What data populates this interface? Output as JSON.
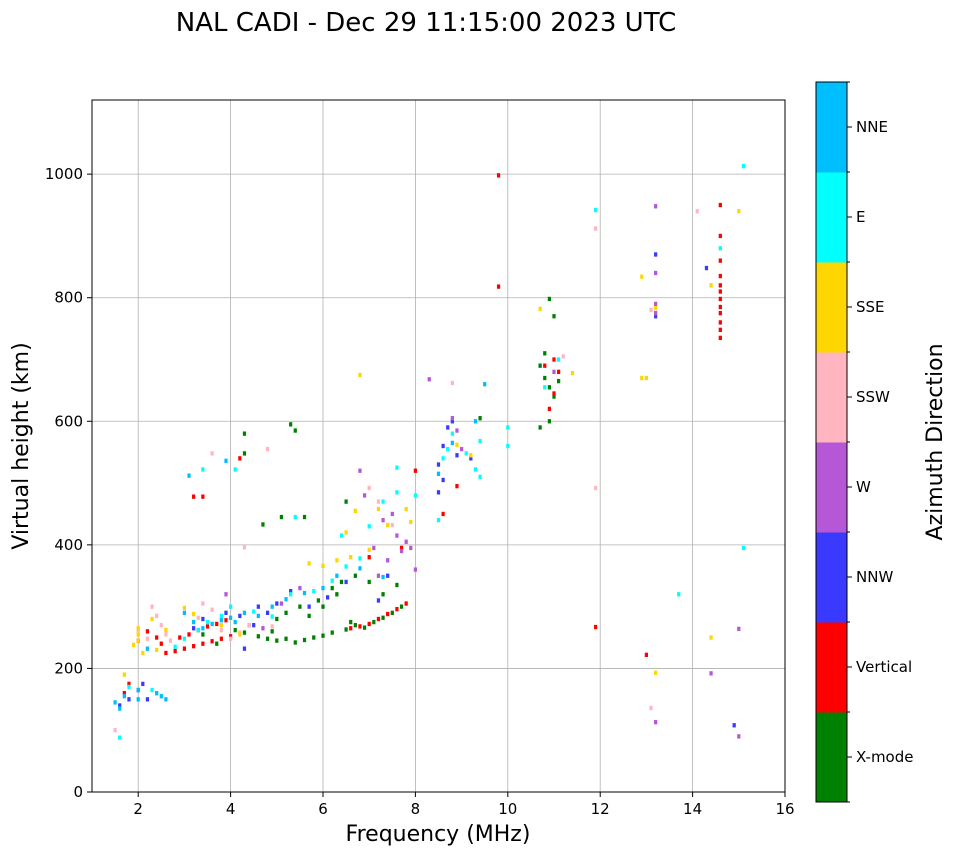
{
  "chart_data": {
    "type": "scatter",
    "title": "NAL CADI - Dec 29 11:15:00 2023 UTC",
    "xlabel": "Frequency (MHz)",
    "ylabel": "Virtual height (km)",
    "xlim": [
      1,
      16
    ],
    "ylim": [
      0,
      1120
    ],
    "xticks": [
      2,
      4,
      6,
      8,
      10,
      12,
      14,
      16
    ],
    "yticks": [
      0,
      200,
      400,
      600,
      800,
      1000
    ],
    "grid": true,
    "colorbar": {
      "label": "Azimuth Direction",
      "categories": [
        "X-mode",
        "Vertical",
        "NNW",
        "W",
        "SSW",
        "SSE",
        "E",
        "NNE"
      ],
      "colors": [
        "#008000",
        "#ff0000",
        "#3a3aff",
        "#b557d6",
        "#ffb6c1",
        "#ffd700",
        "#00ffff",
        "#00bfff"
      ]
    },
    "point_width_mhz": 0.07,
    "point_height_km": 7,
    "series": [
      {
        "name": "X-mode",
        "points": [
          [
            3.4,
            255
          ],
          [
            3.7,
            240
          ],
          [
            4.1,
            262
          ],
          [
            4.3,
            258
          ],
          [
            4.6,
            252
          ],
          [
            4.8,
            248
          ],
          [
            5.0,
            245
          ],
          [
            5.2,
            248
          ],
          [
            5.4,
            242
          ],
          [
            5.6,
            246
          ],
          [
            5.8,
            250
          ],
          [
            6.0,
            253
          ],
          [
            6.2,
            258
          ],
          [
            6.5,
            263
          ],
          [
            6.7,
            270
          ],
          [
            6.9,
            266
          ],
          [
            7.1,
            275
          ],
          [
            7.3,
            282
          ],
          [
            7.5,
            290
          ],
          [
            7.7,
            300
          ],
          [
            5.2,
            290
          ],
          [
            5.5,
            300
          ],
          [
            5.9,
            310
          ],
          [
            6.2,
            330
          ],
          [
            6.4,
            340
          ],
          [
            6.7,
            350
          ],
          [
            7.0,
            340
          ],
          [
            7.3,
            320
          ],
          [
            7.6,
            335
          ],
          [
            5.0,
            280
          ],
          [
            5.7,
            285
          ],
          [
            6.0,
            300
          ],
          [
            6.3,
            320
          ],
          [
            6.6,
            275
          ],
          [
            4.4,
            270
          ],
          [
            4.9,
            260
          ],
          [
            10.7,
            690
          ],
          [
            10.8,
            670
          ],
          [
            10.9,
            655
          ],
          [
            11.0,
            640
          ],
          [
            11.1,
            665
          ],
          [
            10.9,
            600
          ],
          [
            10.7,
            590
          ],
          [
            10.8,
            710
          ],
          [
            11.0,
            770
          ],
          [
            10.9,
            798
          ],
          [
            9.4,
            605
          ],
          [
            4.3,
            580
          ],
          [
            4.3,
            548
          ],
          [
            5.4,
            585
          ],
          [
            5.3,
            595
          ],
          [
            5.6,
            445
          ],
          [
            5.1,
            445
          ],
          [
            6.5,
            470
          ],
          [
            4.7,
            433
          ]
        ]
      },
      {
        "name": "Vertical",
        "points": [
          [
            2.6,
            225
          ],
          [
            2.8,
            228
          ],
          [
            3.0,
            232
          ],
          [
            3.2,
            236
          ],
          [
            3.4,
            240
          ],
          [
            3.6,
            244
          ],
          [
            3.8,
            248
          ],
          [
            4.0,
            252
          ],
          [
            2.9,
            250
          ],
          [
            3.1,
            255
          ],
          [
            3.3,
            262
          ],
          [
            3.5,
            268
          ],
          [
            3.7,
            272
          ],
          [
            3.9,
            278
          ],
          [
            2.5,
            240
          ],
          [
            2.4,
            250
          ],
          [
            2.2,
            260
          ],
          [
            2.0,
            245
          ],
          [
            1.7,
            160
          ],
          [
            1.8,
            175
          ],
          [
            6.6,
            265
          ],
          [
            6.8,
            268
          ],
          [
            7.0,
            272
          ],
          [
            7.2,
            280
          ],
          [
            7.4,
            288
          ],
          [
            7.6,
            296
          ],
          [
            7.8,
            305
          ],
          [
            7.0,
            380
          ],
          [
            7.7,
            395
          ],
          [
            8.0,
            520
          ],
          [
            10.8,
            690
          ],
          [
            11.0,
            700
          ],
          [
            11.1,
            680
          ],
          [
            10.9,
            620
          ],
          [
            11.0,
            645
          ],
          [
            14.6,
            950
          ],
          [
            14.6,
            900
          ],
          [
            14.6,
            860
          ],
          [
            14.6,
            835
          ],
          [
            14.6,
            820
          ],
          [
            14.6,
            810
          ],
          [
            14.6,
            798
          ],
          [
            14.6,
            785
          ],
          [
            14.6,
            775
          ],
          [
            14.6,
            760
          ],
          [
            14.6,
            748
          ],
          [
            14.6,
            735
          ],
          [
            13.0,
            222
          ],
          [
            9.8,
            818
          ],
          [
            9.8,
            998
          ],
          [
            11.9,
            267
          ],
          [
            3.2,
            478
          ],
          [
            3.4,
            478
          ],
          [
            4.2,
            540
          ],
          [
            8.6,
            450
          ],
          [
            8.9,
            495
          ]
        ]
      },
      {
        "name": "NNW",
        "points": [
          [
            1.6,
            140
          ],
          [
            1.8,
            150
          ],
          [
            2.0,
            165
          ],
          [
            2.1,
            175
          ],
          [
            3.4,
            280
          ],
          [
            3.9,
            290
          ],
          [
            4.2,
            285
          ],
          [
            4.5,
            270
          ],
          [
            4.8,
            290
          ],
          [
            5.0,
            305
          ],
          [
            5.3,
            325
          ],
          [
            5.7,
            300
          ],
          [
            6.1,
            315
          ],
          [
            6.5,
            340
          ],
          [
            7.2,
            310
          ],
          [
            8.6,
            560
          ],
          [
            8.7,
            590
          ],
          [
            8.9,
            545
          ],
          [
            8.5,
            530
          ],
          [
            8.6,
            505
          ],
          [
            8.8,
            600
          ],
          [
            9.2,
            540
          ],
          [
            8.5,
            485
          ],
          [
            13.2,
            870
          ],
          [
            13.2,
            770
          ],
          [
            14.3,
            848
          ],
          [
            14.9,
            108
          ],
          [
            4.6,
            300
          ],
          [
            3.2,
            265
          ],
          [
            4.3,
            232
          ],
          [
            2.2,
            150
          ],
          [
            7.4,
            350
          ]
        ]
      },
      {
        "name": "W",
        "points": [
          [
            7.3,
            440
          ],
          [
            7.5,
            450
          ],
          [
            7.6,
            415
          ],
          [
            7.7,
            390
          ],
          [
            7.8,
            405
          ],
          [
            7.9,
            395
          ],
          [
            8.0,
            360
          ],
          [
            7.4,
            375
          ],
          [
            7.1,
            395
          ],
          [
            8.8,
            605
          ],
          [
            8.9,
            585
          ],
          [
            9.0,
            555
          ],
          [
            13.2,
            790
          ],
          [
            13.2,
            775
          ],
          [
            13.2,
            840
          ],
          [
            13.2,
            948
          ],
          [
            14.4,
            192
          ],
          [
            13.2,
            113
          ],
          [
            15.0,
            264
          ],
          [
            15.0,
            90
          ],
          [
            8.3,
            668
          ],
          [
            3.9,
            320
          ],
          [
            5.1,
            305
          ],
          [
            4.7,
            265
          ],
          [
            5.5,
            330
          ],
          [
            6.8,
            520
          ],
          [
            6.9,
            480
          ],
          [
            7.2,
            350
          ],
          [
            11.0,
            680
          ]
        ]
      },
      {
        "name": "SSW",
        "points": [
          [
            2.3,
            300
          ],
          [
            2.4,
            285
          ],
          [
            2.5,
            270
          ],
          [
            2.6,
            255
          ],
          [
            2.2,
            248
          ],
          [
            3.4,
            305
          ],
          [
            3.6,
            295
          ],
          [
            3.8,
            262
          ],
          [
            4.0,
            248
          ],
          [
            4.4,
            270
          ],
          [
            4.9,
            268
          ],
          [
            4.2,
            258
          ],
          [
            7.0,
            492
          ],
          [
            7.2,
            470
          ],
          [
            7.5,
            432
          ],
          [
            8.8,
            662
          ],
          [
            11.9,
            912
          ],
          [
            11.9,
            492
          ],
          [
            13.1,
            136
          ],
          [
            13.1,
            780
          ],
          [
            14.1,
            940
          ],
          [
            3.6,
            548
          ],
          [
            4.3,
            396
          ],
          [
            2.0,
            262
          ],
          [
            4.8,
            555
          ],
          [
            11.2,
            705
          ],
          [
            1.5,
            100
          ],
          [
            2.7,
            245
          ],
          [
            3.3,
            282
          ]
        ]
      },
      {
        "name": "SSE",
        "points": [
          [
            2.0,
            245
          ],
          [
            2.0,
            255
          ],
          [
            2.0,
            265
          ],
          [
            1.9,
            238
          ],
          [
            2.1,
            225
          ],
          [
            2.2,
            232
          ],
          [
            2.3,
            280
          ],
          [
            2.6,
            262
          ],
          [
            3.0,
            298
          ],
          [
            3.2,
            288
          ],
          [
            3.8,
            270
          ],
          [
            4.2,
            255
          ],
          [
            5.7,
            370
          ],
          [
            6.0,
            366
          ],
          [
            6.3,
            375
          ],
          [
            6.6,
            380
          ],
          [
            7.0,
            392
          ],
          [
            7.2,
            458
          ],
          [
            7.4,
            432
          ],
          [
            7.8,
            458
          ],
          [
            7.9,
            437
          ],
          [
            8.9,
            562
          ],
          [
            9.2,
            545
          ],
          [
            10.7,
            782
          ],
          [
            11.4,
            678
          ],
          [
            12.9,
            670
          ],
          [
            13.0,
            670
          ],
          [
            12.9,
            834
          ],
          [
            13.2,
            193
          ],
          [
            13.2,
            783
          ],
          [
            14.4,
            820
          ],
          [
            14.4,
            250
          ],
          [
            15.0,
            940
          ],
          [
            6.5,
            420
          ],
          [
            6.7,
            455
          ],
          [
            2.4,
            230
          ],
          [
            1.7,
            190
          ],
          [
            6.8,
            675
          ]
        ]
      },
      {
        "name": "E",
        "points": [
          [
            1.8,
            170
          ],
          [
            2.3,
            165
          ],
          [
            2.4,
            160
          ],
          [
            3.3,
            262
          ],
          [
            3.5,
            275
          ],
          [
            3.8,
            285
          ],
          [
            4.0,
            300
          ],
          [
            4.5,
            292
          ],
          [
            4.9,
            284
          ],
          [
            5.3,
            320
          ],
          [
            5.8,
            325
          ],
          [
            6.2,
            342
          ],
          [
            6.5,
            365
          ],
          [
            6.8,
            378
          ],
          [
            7.0,
            430
          ],
          [
            7.3,
            470
          ],
          [
            7.6,
            485
          ],
          [
            8.0,
            480
          ],
          [
            8.5,
            440
          ],
          [
            8.7,
            555
          ],
          [
            8.8,
            580
          ],
          [
            9.1,
            548
          ],
          [
            9.3,
            522
          ],
          [
            9.4,
            510
          ],
          [
            9.4,
            568
          ],
          [
            10.0,
            560
          ],
          [
            10.0,
            590
          ],
          [
            10.8,
            655
          ],
          [
            11.1,
            700
          ],
          [
            11.9,
            942
          ],
          [
            13.7,
            320
          ],
          [
            15.1,
            395
          ],
          [
            15.1,
            1013
          ],
          [
            14.6,
            880
          ],
          [
            3.4,
            522
          ],
          [
            4.1,
            522
          ],
          [
            5.4,
            445
          ],
          [
            6.4,
            415
          ],
          [
            7.6,
            525
          ],
          [
            8.6,
            540
          ],
          [
            2.8,
            235
          ],
          [
            3.0,
            248
          ],
          [
            1.6,
            88
          ]
        ]
      },
      {
        "name": "NNE",
        "points": [
          [
            1.5,
            145
          ],
          [
            1.6,
            135
          ],
          [
            1.7,
            155
          ],
          [
            2.0,
            150
          ],
          [
            2.0,
            165
          ],
          [
            2.4,
            160
          ],
          [
            2.5,
            155
          ],
          [
            2.6,
            150
          ],
          [
            3.2,
            275
          ],
          [
            3.4,
            265
          ],
          [
            3.6,
            272
          ],
          [
            3.8,
            278
          ],
          [
            4.0,
            282
          ],
          [
            4.3,
            290
          ],
          [
            4.6,
            285
          ],
          [
            4.9,
            300
          ],
          [
            5.2,
            312
          ],
          [
            5.6,
            322
          ],
          [
            6.0,
            330
          ],
          [
            6.3,
            350
          ],
          [
            6.8,
            362
          ],
          [
            7.3,
            348
          ],
          [
            8.5,
            515
          ],
          [
            8.8,
            565
          ],
          [
            9.3,
            600
          ],
          [
            9.5,
            660
          ],
          [
            3.1,
            512
          ],
          [
            3.9,
            536
          ],
          [
            2.2,
            232
          ],
          [
            4.1,
            275
          ],
          [
            3.0,
            290
          ]
        ]
      }
    ]
  }
}
